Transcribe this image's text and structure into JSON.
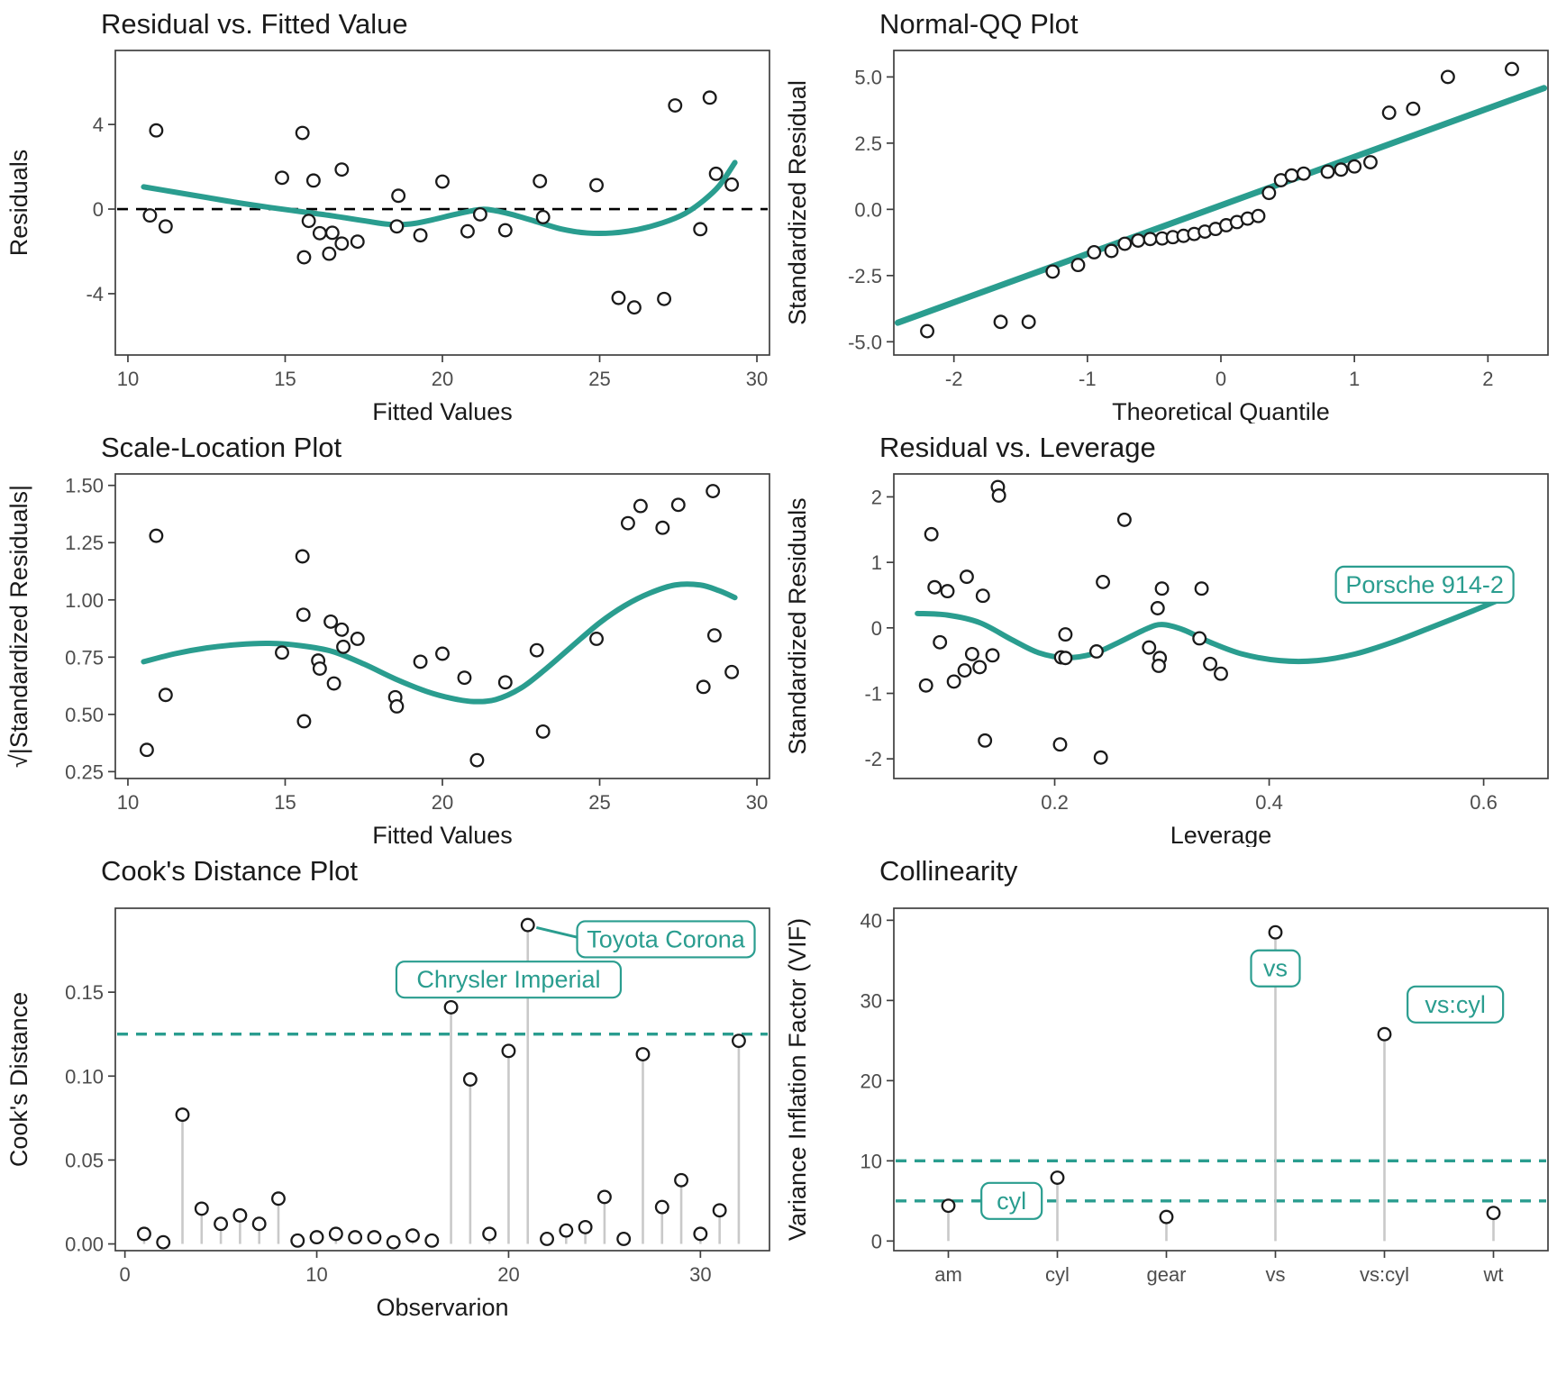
{
  "colors": {
    "teal": "#2a9d8f",
    "stem_gray": "#c9c9c9",
    "point_stroke": "#1a1a1a",
    "point_fill": "#ffffff",
    "axis": "#3f3f3f",
    "tick_text": "#4d4d4d",
    "title_text": "#1a1a1a",
    "zero_dash": "#000000"
  },
  "chart_data": [
    {
      "type": "scatter",
      "title": "Residual vs. Fitted Value",
      "xlabel": "Fitted Values",
      "ylabel": "Residuals",
      "xlim": [
        9.6,
        30.4
      ],
      "ylim": [
        -6.9,
        7.5
      ],
      "xticks": [
        10,
        15,
        20,
        25,
        30
      ],
      "xtick_labels": [
        "10",
        "15",
        "20",
        "25",
        "30"
      ],
      "yticks": [
        -4,
        0,
        4
      ],
      "ytick_labels": [
        "-4",
        "0",
        "4"
      ],
      "hlines": [
        {
          "y": 0,
          "color": "#000000",
          "dashed": true,
          "width": 2.6
        }
      ],
      "points": [
        [
          10.9,
          3.72
        ],
        [
          10.7,
          -0.3
        ],
        [
          11.2,
          -0.82
        ],
        [
          14.9,
          1.48
        ],
        [
          15.55,
          3.6
        ],
        [
          15.9,
          1.35
        ],
        [
          16.8,
          1.87
        ],
        [
          15.75,
          -0.56
        ],
        [
          16.1,
          -1.14
        ],
        [
          16.5,
          -1.12
        ],
        [
          16.8,
          -1.63
        ],
        [
          17.3,
          -1.54
        ],
        [
          15.6,
          -2.28
        ],
        [
          16.4,
          -2.11
        ],
        [
          18.6,
          0.63
        ],
        [
          18.55,
          -0.82
        ],
        [
          19.3,
          -1.24
        ],
        [
          20.0,
          1.3
        ],
        [
          21.2,
          -0.25
        ],
        [
          20.8,
          -1.05
        ],
        [
          22.0,
          -1.0
        ],
        [
          23.1,
          1.32
        ],
        [
          23.2,
          -0.38
        ],
        [
          24.9,
          1.13
        ],
        [
          25.6,
          -4.2
        ],
        [
          26.1,
          -4.65
        ],
        [
          27.05,
          -4.25
        ],
        [
          27.4,
          4.9
        ],
        [
          28.5,
          5.27
        ],
        [
          28.2,
          -0.95
        ],
        [
          28.7,
          1.67
        ],
        [
          29.2,
          1.16
        ]
      ],
      "smooth": [
        [
          10.5,
          1.05
        ],
        [
          11.5,
          0.8
        ],
        [
          12.5,
          0.55
        ],
        [
          13.5,
          0.3
        ],
        [
          14.5,
          0.08
        ],
        [
          15.5,
          -0.12
        ],
        [
          16.5,
          -0.32
        ],
        [
          17.5,
          -0.55
        ],
        [
          18.3,
          -0.72
        ],
        [
          19.0,
          -0.7
        ],
        [
          19.7,
          -0.5
        ],
        [
          20.4,
          -0.25
        ],
        [
          21.1,
          -0.04
        ],
        [
          21.5,
          -0.03
        ],
        [
          22.2,
          -0.25
        ],
        [
          23.0,
          -0.6
        ],
        [
          23.8,
          -0.95
        ],
        [
          24.6,
          -1.13
        ],
        [
          25.4,
          -1.13
        ],
        [
          26.2,
          -0.97
        ],
        [
          27.0,
          -0.65
        ],
        [
          27.7,
          -0.22
        ],
        [
          28.3,
          0.4
        ],
        [
          28.8,
          1.1
        ],
        [
          29.3,
          2.2
        ]
      ]
    },
    {
      "type": "scatter",
      "title": "Normal-QQ Plot",
      "xlabel": "Theoretical Quantile",
      "ylabel": "Standardized Residual",
      "xlim": [
        -2.45,
        2.45
      ],
      "ylim": [
        -5.5,
        6.0
      ],
      "xticks": [
        -2,
        -1,
        0,
        1,
        2
      ],
      "xtick_labels": [
        "-2",
        "-1",
        "0",
        "1",
        "2"
      ],
      "yticks": [
        -5.0,
        -2.5,
        0.0,
        2.5,
        5.0
      ],
      "ytick_labels": [
        "-5.0",
        "-2.5",
        "0.0",
        "2.5",
        "5.0"
      ],
      "line": [
        [
          -2.42,
          -4.28
        ],
        [
          2.42,
          4.58
        ]
      ],
      "points": [
        [
          -2.2,
          -4.6
        ],
        [
          -1.65,
          -4.25
        ],
        [
          -1.44,
          -4.25
        ],
        [
          -1.26,
          -2.35
        ],
        [
          -1.07,
          -2.1
        ],
        [
          -0.95,
          -1.62
        ],
        [
          -0.82,
          -1.57
        ],
        [
          -0.72,
          -1.3
        ],
        [
          -0.62,
          -1.18
        ],
        [
          -0.53,
          -1.12
        ],
        [
          -0.44,
          -1.1
        ],
        [
          -0.36,
          -1.05
        ],
        [
          -0.28,
          -1.0
        ],
        [
          -0.2,
          -0.93
        ],
        [
          -0.12,
          -0.84
        ],
        [
          -0.04,
          -0.74
        ],
        [
          0.04,
          -0.6
        ],
        [
          0.12,
          -0.48
        ],
        [
          0.2,
          -0.35
        ],
        [
          0.28,
          -0.25
        ],
        [
          0.36,
          0.62
        ],
        [
          0.45,
          1.1
        ],
        [
          0.53,
          1.28
        ],
        [
          0.62,
          1.35
        ],
        [
          0.8,
          1.42
        ],
        [
          0.9,
          1.5
        ],
        [
          1.0,
          1.62
        ],
        [
          1.12,
          1.78
        ],
        [
          1.26,
          3.65
        ],
        [
          1.44,
          3.8
        ],
        [
          1.7,
          5.0
        ],
        [
          2.18,
          5.3
        ]
      ]
    },
    {
      "type": "scatter",
      "title": "Scale-Location Plot",
      "xlabel": "Fitted Values",
      "ylabel": "√|Standardized Residuals|",
      "xlim": [
        9.6,
        30.4
      ],
      "ylim": [
        0.22,
        1.55
      ],
      "xticks": [
        10,
        15,
        20,
        25,
        30
      ],
      "xtick_labels": [
        "10",
        "15",
        "20",
        "25",
        "30"
      ],
      "yticks": [
        0.25,
        0.5,
        0.75,
        1.0,
        1.25,
        1.5
      ],
      "ytick_labels": [
        "0.25",
        "0.50",
        "0.75",
        "1.00",
        "1.25",
        "1.50"
      ],
      "points": [
        [
          10.6,
          0.345
        ],
        [
          10.9,
          1.28
        ],
        [
          11.2,
          0.585
        ],
        [
          14.9,
          0.77
        ],
        [
          15.55,
          1.19
        ],
        [
          15.6,
          0.47
        ],
        [
          15.58,
          0.935
        ],
        [
          16.05,
          0.735
        ],
        [
          16.1,
          0.7
        ],
        [
          16.45,
          0.905
        ],
        [
          16.8,
          0.87
        ],
        [
          16.55,
          0.635
        ],
        [
          16.85,
          0.795
        ],
        [
          17.3,
          0.83
        ],
        [
          18.5,
          0.575
        ],
        [
          18.55,
          0.535
        ],
        [
          19.3,
          0.73
        ],
        [
          20.0,
          0.765
        ],
        [
          20.7,
          0.66
        ],
        [
          21.1,
          0.3
        ],
        [
          22.0,
          0.64
        ],
        [
          23.0,
          0.78
        ],
        [
          23.2,
          0.425
        ],
        [
          24.9,
          0.83
        ],
        [
          25.9,
          1.335
        ],
        [
          26.3,
          1.41
        ],
        [
          27.0,
          1.315
        ],
        [
          27.5,
          1.415
        ],
        [
          28.6,
          1.475
        ],
        [
          28.3,
          0.62
        ],
        [
          28.65,
          0.845
        ],
        [
          29.2,
          0.685
        ]
      ],
      "smooth": [
        [
          10.5,
          0.73
        ],
        [
          11.5,
          0.765
        ],
        [
          12.5,
          0.79
        ],
        [
          13.5,
          0.805
        ],
        [
          14.5,
          0.81
        ],
        [
          15.5,
          0.8
        ],
        [
          16.5,
          0.775
        ],
        [
          17.5,
          0.72
        ],
        [
          18.5,
          0.655
        ],
        [
          19.5,
          0.6
        ],
        [
          20.3,
          0.57
        ],
        [
          21.0,
          0.556
        ],
        [
          21.7,
          0.565
        ],
        [
          22.5,
          0.615
        ],
        [
          23.3,
          0.7
        ],
        [
          24.1,
          0.795
        ],
        [
          25.0,
          0.9
        ],
        [
          25.8,
          0.975
        ],
        [
          26.6,
          1.03
        ],
        [
          27.4,
          1.065
        ],
        [
          28.2,
          1.065
        ],
        [
          28.8,
          1.04
        ],
        [
          29.3,
          1.01
        ]
      ]
    },
    {
      "type": "scatter",
      "title": "Residual vs. Leverage",
      "xlabel": "Leverage",
      "ylabel": "Standardized Residuals",
      "xlim": [
        0.05,
        0.66
      ],
      "ylim": [
        -2.3,
        2.35
      ],
      "xticks": [
        0.2,
        0.4,
        0.6
      ],
      "xtick_labels": [
        "0.2",
        "0.4",
        "0.6"
      ],
      "yticks": [
        -2,
        -1,
        0,
        1,
        2
      ],
      "ytick_labels": [
        "-2",
        "-1",
        "0",
        "1",
        "2"
      ],
      "points": [
        [
          0.085,
          1.43
        ],
        [
          0.147,
          2.15
        ],
        [
          0.148,
          2.02
        ],
        [
          0.265,
          1.65
        ],
        [
          0.088,
          0.62
        ],
        [
          0.1,
          0.56
        ],
        [
          0.118,
          0.78
        ],
        [
          0.133,
          0.49
        ],
        [
          0.245,
          0.7
        ],
        [
          0.3,
          0.6
        ],
        [
          0.337,
          0.6
        ],
        [
          0.296,
          0.3
        ],
        [
          0.093,
          -0.22
        ],
        [
          0.123,
          -0.4
        ],
        [
          0.142,
          -0.42
        ],
        [
          0.21,
          -0.1
        ],
        [
          0.206,
          -0.45
        ],
        [
          0.21,
          -0.46
        ],
        [
          0.239,
          -0.36
        ],
        [
          0.288,
          -0.3
        ],
        [
          0.298,
          -0.46
        ],
        [
          0.297,
          -0.58
        ],
        [
          0.335,
          -0.16
        ],
        [
          0.345,
          -0.55
        ],
        [
          0.355,
          -0.7
        ],
        [
          0.08,
          -0.88
        ],
        [
          0.106,
          -0.82
        ],
        [
          0.116,
          -0.65
        ],
        [
          0.135,
          -1.72
        ],
        [
          0.205,
          -1.78
        ],
        [
          0.243,
          -1.98
        ],
        [
          0.13,
          -0.6
        ]
      ],
      "smooth": [
        [
          0.072,
          0.22
        ],
        [
          0.1,
          0.195
        ],
        [
          0.13,
          0.08
        ],
        [
          0.16,
          -0.18
        ],
        [
          0.185,
          -0.38
        ],
        [
          0.21,
          -0.455
        ],
        [
          0.235,
          -0.4
        ],
        [
          0.26,
          -0.22
        ],
        [
          0.285,
          -0.02
        ],
        [
          0.3,
          0.05
        ],
        [
          0.32,
          -0.03
        ],
        [
          0.345,
          -0.22
        ],
        [
          0.375,
          -0.4
        ],
        [
          0.41,
          -0.5
        ],
        [
          0.445,
          -0.5
        ],
        [
          0.48,
          -0.4
        ],
        [
          0.515,
          -0.22
        ],
        [
          0.55,
          0.0
        ],
        [
          0.59,
          0.26
        ],
        [
          0.625,
          0.5
        ]
      ],
      "annotations": [
        {
          "x": 0.545,
          "y": 0.66,
          "text": "Porsche 914-2"
        }
      ]
    },
    {
      "type": "lollipop",
      "title": "Cook's Distance Plot",
      "xlabel": "Observarion",
      "ylabel": "Cook's Distance",
      "xlim": [
        -0.5,
        33.6
      ],
      "ylim": [
        -0.004,
        0.2
      ],
      "xticks": [
        0,
        10,
        20,
        30
      ],
      "xtick_labels": [
        "0",
        "10",
        "20",
        "30"
      ],
      "yticks": [
        0.0,
        0.05,
        0.1,
        0.15
      ],
      "ytick_labels": [
        "0.00",
        "0.05",
        "0.10",
        "0.15"
      ],
      "hlines": [
        {
          "y": 0.125,
          "color": "#2a9d8f",
          "dashed": true,
          "width": 3.4
        }
      ],
      "stem_start_x": 1,
      "values": [
        0.006,
        0.001,
        0.077,
        0.021,
        0.012,
        0.017,
        0.012,
        0.027,
        0.002,
        0.004,
        0.006,
        0.004,
        0.004,
        0.001,
        0.005,
        0.002,
        0.141,
        0.098,
        0.006,
        0.115,
        0.19,
        0.003,
        0.008,
        0.01,
        0.028,
        0.003,
        0.113,
        0.022,
        0.038,
        0.006,
        0.02,
        0.121
      ],
      "connectors": [
        [
          [
            21.45,
            0.1885
          ],
          [
            23.65,
            0.1825
          ]
        ]
      ],
      "annotations": [
        {
          "x": 28.2,
          "y": 0.1815,
          "text": "Toyota Corona"
        },
        {
          "x": 20.0,
          "y": 0.1575,
          "text": "Chrysler Imperial"
        }
      ]
    },
    {
      "type": "lollipop-cat",
      "title": "Collinearity",
      "xlabel": "",
      "ylabel": "Variance Inflation Factor (VIF)",
      "categories": [
        "am",
        "cyl",
        "gear",
        "vs",
        "vs:cyl",
        "wt"
      ],
      "ylim": [
        -1.2,
        41.5
      ],
      "yticks": [
        0,
        10,
        20,
        30,
        40
      ],
      "ytick_labels": [
        "0",
        "10",
        "20",
        "30",
        "40"
      ],
      "hlines": [
        {
          "y": 10,
          "color": "#2a9d8f",
          "dashed": true,
          "width": 3.4
        },
        {
          "y": 5,
          "color": "#2a9d8f",
          "dashed": true,
          "width": 3.4
        }
      ],
      "values": [
        4.4,
        7.9,
        3.0,
        38.5,
        25.8,
        3.5
      ],
      "annotations": [
        {
          "x": 1.08,
          "y": 5.0,
          "text": "cyl"
        },
        {
          "x": 3.5,
          "y": 34.0,
          "text": "vs"
        },
        {
          "x": 5.15,
          "y": 29.5,
          "text": "vs:cyl"
        }
      ]
    }
  ]
}
